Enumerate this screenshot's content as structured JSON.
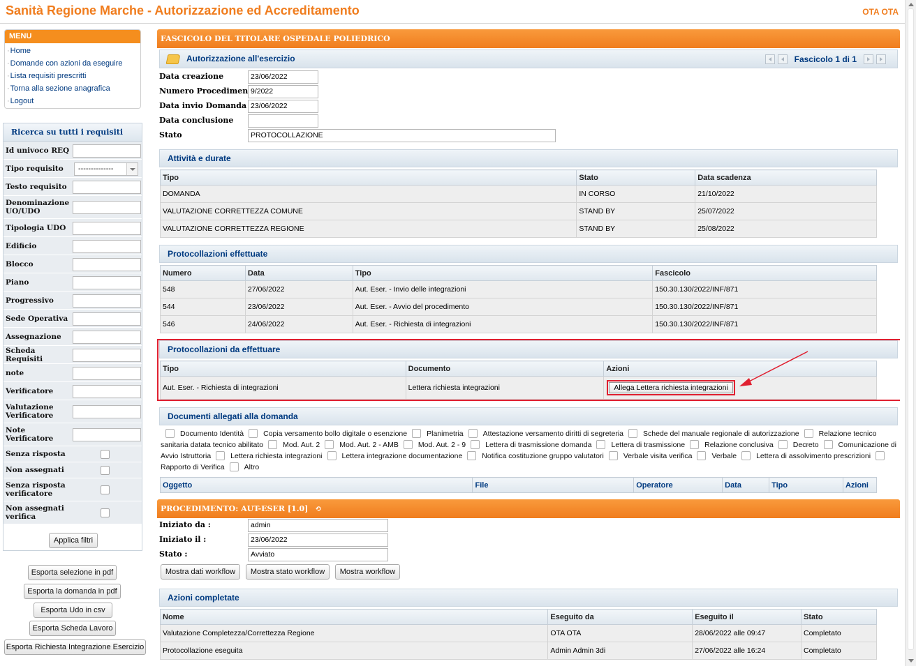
{
  "header": {
    "title": "Sanità Regione Marche - Autorizzazione ed Accreditamento",
    "user": "OTA OTA"
  },
  "menu": {
    "title": "MENU",
    "items": [
      "Home",
      "Domande con azioni da eseguire",
      "Lista requisiti prescritti",
      "Torna alla sezione anagrafica",
      "Logout"
    ]
  },
  "search": {
    "title": "Ricerca su tutti i requisiti",
    "fields": [
      {
        "label": "Id univoco REQ",
        "type": "text"
      },
      {
        "label": "Tipo requisito",
        "type": "select",
        "value": "--------------"
      },
      {
        "label": "Testo requisito",
        "type": "text"
      },
      {
        "label": "Denominazione UO/UDO",
        "type": "text"
      },
      {
        "label": "Tipologia UDO",
        "type": "text"
      },
      {
        "label": "Edificio",
        "type": "text"
      },
      {
        "label": "Blocco",
        "type": "text"
      },
      {
        "label": "Piano",
        "type": "text"
      },
      {
        "label": "Progressivo",
        "type": "text"
      },
      {
        "label": "Sede Operativa",
        "type": "text"
      },
      {
        "label": "Assegnazione",
        "type": "text"
      },
      {
        "label": "Scheda Requisiti",
        "type": "text"
      },
      {
        "label": "note",
        "type": "text"
      },
      {
        "label": "Verificatore",
        "type": "text"
      },
      {
        "label": "Valutazione Verificatore",
        "type": "text"
      },
      {
        "label": "Note Verificatore",
        "type": "text"
      },
      {
        "label": "Senza risposta",
        "type": "checkbox"
      },
      {
        "label": "Non assegnati",
        "type": "checkbox"
      },
      {
        "label": "Senza risposta verificatore",
        "type": "checkbox"
      },
      {
        "label": "Non assegnati verifica",
        "type": "checkbox"
      }
    ],
    "apply_label": "Applica filtri"
  },
  "export_buttons": [
    "Esporta selezione in pdf",
    "Esporta la domanda in pdf",
    "Esporta Udo in csv",
    "Esporta Scheda Lavoro",
    "Esporta Richiesta Integrazione Esercizio"
  ],
  "dossier": {
    "title": "FASCICOLO DEL TITOLARE OSPEDALE POLIEDRICO",
    "section": "Autorizzazione all'esercizio",
    "pager": "Fascicolo 1 di 1",
    "fields": [
      {
        "label": "Data creazione",
        "value": "23/06/2022"
      },
      {
        "label": "Numero Procedimento",
        "value": "9/2022"
      },
      {
        "label": "Data invio Domanda",
        "value": "23/06/2022"
      },
      {
        "label": "Data conclusione",
        "value": ""
      },
      {
        "label": "Stato",
        "value": "PROTOCOLLAZIONE"
      }
    ]
  },
  "activities": {
    "title": "Attività e durate",
    "columns": [
      "Tipo",
      "Stato",
      "Data scadenza"
    ],
    "rows": [
      [
        "DOMANDA",
        "IN CORSO",
        "21/10/2022"
      ],
      [
        "VALUTAZIONE CORRETTEZZA COMUNE",
        "STAND BY",
        "25/07/2022"
      ],
      [
        "VALUTAZIONE CORRETTEZZA REGIONE",
        "STAND BY",
        "25/08/2022"
      ]
    ]
  },
  "protocols_done": {
    "title": "Protocollazioni effettuate",
    "columns": [
      "Numero",
      "Data",
      "Tipo",
      "Fascicolo"
    ],
    "rows": [
      [
        "548",
        "27/06/2022",
        "Aut. Eser. - Invio delle integrazioni",
        "150.30.130/2022/INF/871"
      ],
      [
        "544",
        "23/06/2022",
        "Aut. Eser. - Avvio del procedimento",
        "150.30.130/2022/INF/871"
      ],
      [
        "546",
        "24/06/2022",
        "Aut. Eser. - Richiesta di integrazioni",
        "150.30.130/2022/INF/871"
      ]
    ]
  },
  "protocols_todo": {
    "title": "Protocollazioni da effettuare",
    "columns": [
      "Tipo",
      "Documento",
      "Azioni"
    ],
    "rows": [
      [
        "Aut. Eser. - Richiesta di integrazioni",
        "Lettera richiesta integrazioni",
        "Allega Lettera richiesta integrazioni"
      ]
    ]
  },
  "attachments": {
    "title": "Documenti allegati alla domanda",
    "doc_types": [
      "Documento Identità",
      "Copia versamento bollo digitale o esenzione",
      "Planimetria",
      "Attestazione versamento diritti di segreteria",
      "Schede del manuale regionale di autorizzazione",
      "Relazione tecnico sanitaria datata tecnico abilitato",
      "Mod. Aut. 2",
      "Mod. Aut. 2 - AMB",
      "Mod. Aut. 2 - 9",
      "Lettera di trasmissione domanda",
      "Lettera di trasmissione",
      "Relazione conclusiva",
      "Decreto",
      "Comunicazione di Avvio Istruttoria",
      "Lettera richiesta integrazioni",
      "Lettera integrazione documentazione",
      "Notifica costituzione gruppo valutatori",
      "Verbale visita verifica",
      "Verbale",
      "Lettera di assolvimento prescrizioni",
      "Rapporto di Verifica",
      "Altro"
    ],
    "columns": [
      "Oggetto",
      "File",
      "Operatore",
      "Data",
      "Tipo",
      "Azioni"
    ]
  },
  "procedure": {
    "title": "PROCEDIMENTO: AUT-ESER [1.0]",
    "fields": [
      {
        "label": "Iniziato da :",
        "value": "admin"
      },
      {
        "label": "Iniziato il :",
        "value": "23/06/2022"
      },
      {
        "label": "Stato :",
        "value": "Avviato"
      }
    ],
    "buttons": [
      "Mostra dati workflow",
      "Mostra stato workflow",
      "Mostra workflow"
    ]
  },
  "completed": {
    "title": "Azioni completate",
    "columns": [
      "Nome",
      "Eseguito da",
      "Eseguito il",
      "Stato"
    ],
    "rows": [
      [
        "Valutazione Completezza/Correttezza Regione",
        "OTA OTA",
        "28/06/2022 alle 09:47",
        "Completato"
      ],
      [
        "Protocollazione eseguita",
        "Admin Admin 3di",
        "27/06/2022 alle 16:24",
        "Completato"
      ]
    ]
  },
  "colors": {
    "accent": "#f07d1e",
    "link": "#003a80",
    "highlight": "#e02030"
  }
}
